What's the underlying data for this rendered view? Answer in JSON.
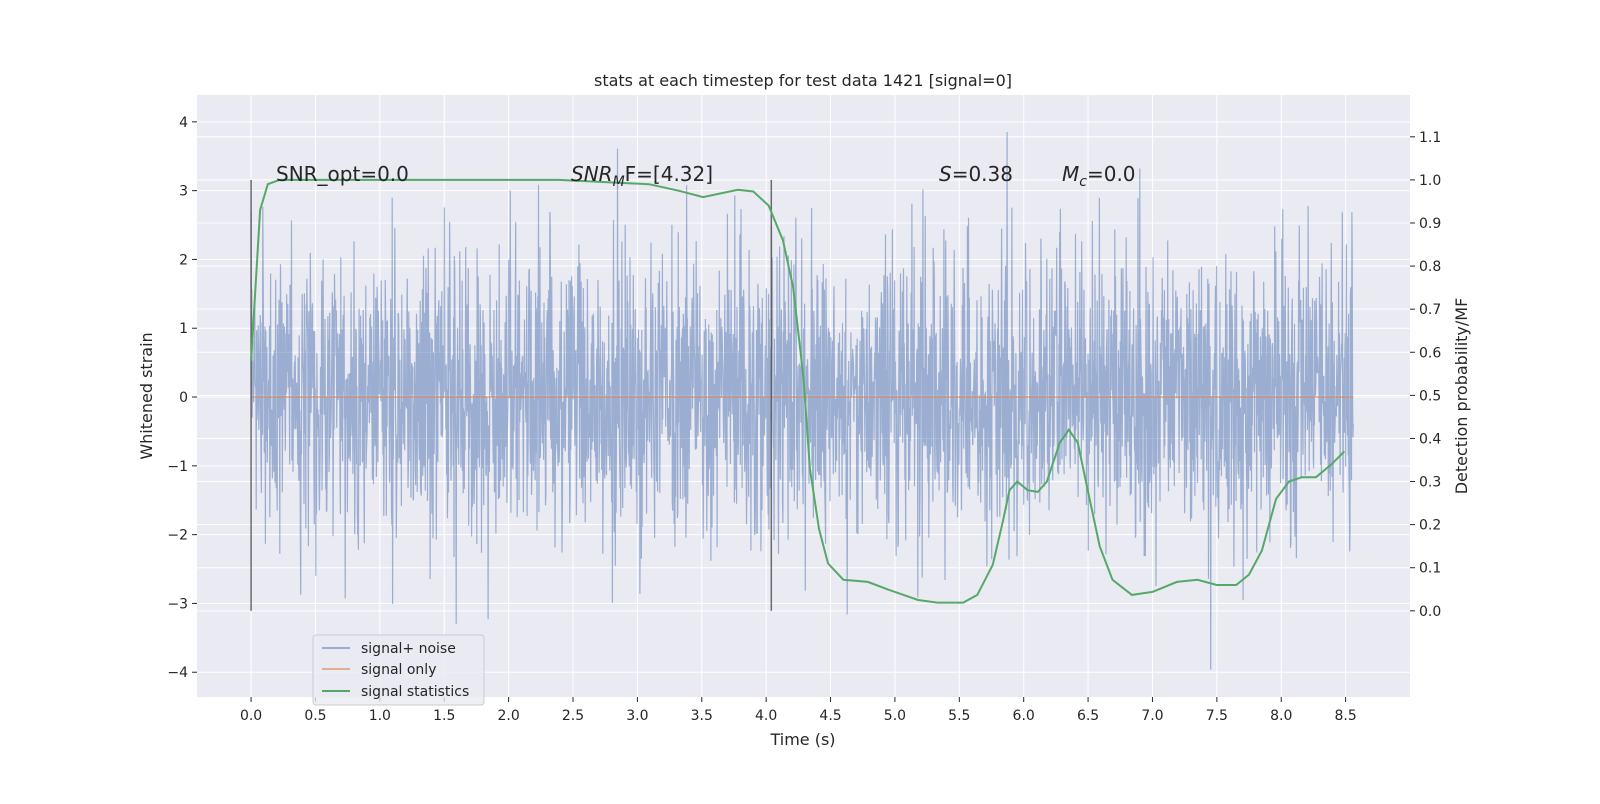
{
  "chart_data": {
    "type": "line",
    "title": "stats at each timestep for test data 1421 [signal=0]",
    "xlabel": "Time (s)",
    "ylabel": "Whitened strain",
    "ylabel_right": "Detection probability/MF",
    "xlim": [
      -0.42,
      9.0
    ],
    "ylim": [
      -4.36,
      4.39
    ],
    "ylim_right": [
      -0.2,
      1.197
    ],
    "x_ticks": [
      "0.0",
      "0.5",
      "1.0",
      "1.5",
      "2.0",
      "2.5",
      "3.0",
      "3.5",
      "4.0",
      "4.5",
      "5.0",
      "5.5",
      "6.0",
      "6.5",
      "7.0",
      "7.5",
      "8.0",
      "8.5"
    ],
    "y_ticks": [
      "4",
      "3",
      "2",
      "1",
      "0",
      "−1",
      "−2",
      "−3",
      "−4"
    ],
    "y_ticks_right": [
      "0.0",
      "0.1",
      "0.2",
      "0.3",
      "0.4",
      "0.5",
      "0.6",
      "0.7",
      "0.8",
      "0.9",
      "1.0",
      "1.1"
    ],
    "grid": true,
    "legend": {
      "placement": "lower-left",
      "entries": [
        {
          "label": "signal+ noise",
          "color": "#4c72b0"
        },
        {
          "label": "signal only",
          "color": "#dd8452"
        },
        {
          "label": "signal statistics",
          "color": "#55a868"
        }
      ]
    },
    "annotations": {
      "snr_opt": "SNR_opt=0.0",
      "snr_mf_main": "SNR",
      "snr_mf_sub": "M",
      "snr_mf_rest": "F=[4.32]",
      "s_var": "S",
      "s_val": "=0.38",
      "mc_var": "M",
      "mc_sub": "c",
      "mc_val": "=0.0"
    },
    "series": [
      {
        "name": "signal+ noise",
        "kind": "noise",
        "t_range": [
          0,
          8.56
        ],
        "std": 1.0,
        "peak": 4.0
      },
      {
        "name": "signal only",
        "t_range": [
          0,
          8.56
        ],
        "value": 0
      },
      {
        "name": "signal statistics",
        "axis": "right",
        "x": [
          0,
          0.07,
          0.13,
          0.22,
          2.39,
          3.09,
          3.32,
          3.51,
          3.78,
          3.9,
          4.02,
          4.13,
          4.21,
          4.29,
          4.34,
          4.41,
          4.48,
          4.6,
          4.79,
          4.95,
          5.18,
          5.33,
          5.53,
          5.64,
          5.76,
          5.84,
          5.89,
          5.95,
          6.03,
          6.11,
          6.18,
          6.28,
          6.35,
          6.42,
          6.49,
          6.59,
          6.69,
          6.84,
          7.0,
          7.19,
          7.35,
          7.5,
          7.65,
          7.75,
          7.85,
          7.96,
          8.06,
          8.16,
          8.27,
          8.39,
          8.49
        ],
        "y": [
          0.58,
          0.93,
          0.99,
          1.0,
          1.0,
          0.99,
          0.975,
          0.96,
          0.977,
          0.973,
          0.94,
          0.86,
          0.75,
          0.54,
          0.33,
          0.19,
          0.11,
          0.072,
          0.067,
          0.049,
          0.025,
          0.019,
          0.019,
          0.037,
          0.107,
          0.21,
          0.28,
          0.3,
          0.28,
          0.276,
          0.3,
          0.39,
          0.42,
          0.39,
          0.29,
          0.15,
          0.072,
          0.037,
          0.044,
          0.067,
          0.072,
          0.06,
          0.06,
          0.084,
          0.14,
          0.26,
          0.3,
          0.31,
          0.31,
          0.34,
          0.37
        ]
      }
    ],
    "vlines": [
      0,
      4.04
    ]
  }
}
